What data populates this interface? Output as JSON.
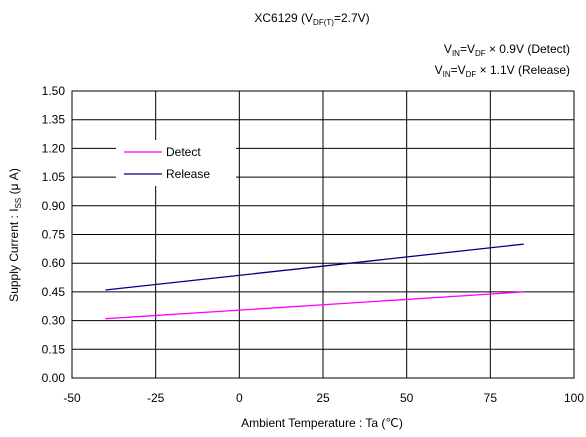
{
  "chart_data": {
    "type": "line",
    "title_main": "XC6129 (V",
    "title_sub": "DF(T)",
    "title_tail": "=2.7V)",
    "condition_detect": {
      "v": "V",
      "sub1": "IN",
      "eq": "=V",
      "sub2": "DF",
      "tail": " × 0.9V (Detect)"
    },
    "condition_release": {
      "v": "V",
      "sub1": "IN",
      "eq": "=V",
      "sub2": "DF",
      "tail": " × 1.1V (Release)"
    },
    "xlabel": "Ambient Temperature : Ta (℃)",
    "ylabel_main": "Supply Current : I",
    "ylabel_sub": "SS",
    "ylabel_tail": " (μ A)",
    "xlim": [
      -50,
      100
    ],
    "ylim": [
      0,
      1.5
    ],
    "x_ticks": [
      "-50",
      "-25",
      "0",
      "25",
      "50",
      "75",
      "100"
    ],
    "y_ticks": [
      "0.00",
      "0.15",
      "0.30",
      "0.45",
      "0.60",
      "0.75",
      "0.90",
      "1.05",
      "1.20",
      "1.35",
      "1.50"
    ],
    "grid": true,
    "legend_position": "upper-left",
    "series": [
      {
        "name": "Detect",
        "color": "#ff00ff",
        "x": [
          -40,
          85
        ],
        "y": [
          0.31,
          0.45
        ]
      },
      {
        "name": "Release",
        "color": "#000080",
        "x": [
          -40,
          85
        ],
        "y": [
          0.46,
          0.7
        ]
      }
    ]
  }
}
